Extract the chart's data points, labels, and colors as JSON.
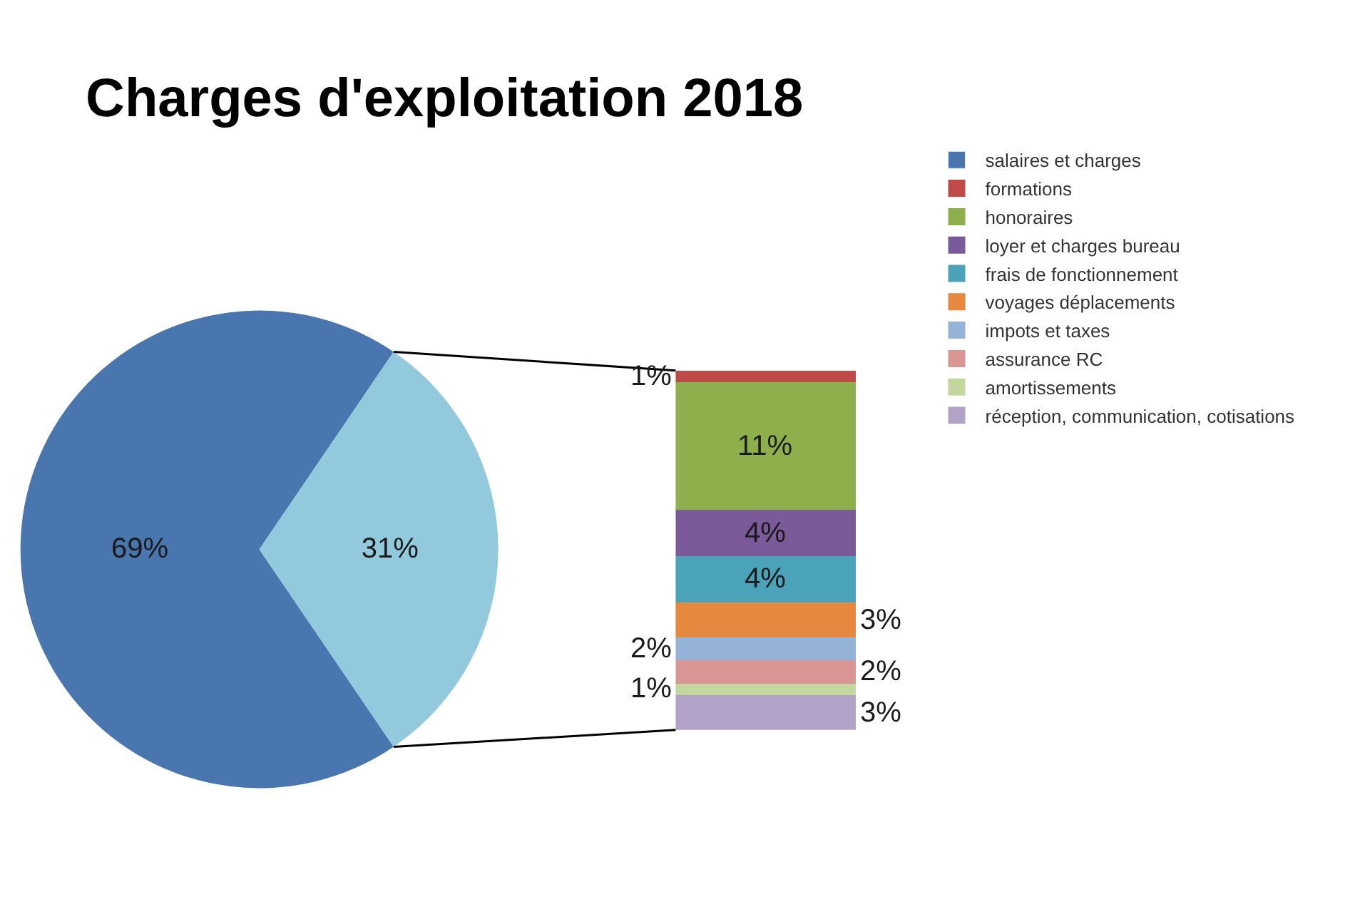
{
  "chart_data": [
    {
      "type": "pie",
      "title": "Charges d'exploitation 2018",
      "categories": [
        "salaires et charges",
        null
      ],
      "values": [
        69,
        31
      ],
      "colors": [
        "#4a76b0",
        "#93c9dc"
      ],
      "value_labels": [
        "69%",
        "31%"
      ],
      "legend": "right"
    },
    {
      "type": "bar",
      "stacked": true,
      "categories": [
        null
      ],
      "legend": "right",
      "series": [
        {
          "name": "réception, communication, cotisations",
          "color": "#b3a2c8",
          "values": [
            3
          ],
          "value_labels": [
            "3%"
          ]
        },
        {
          "name": "amortissements",
          "color": "#c3d69b",
          "values": [
            1
          ],
          "value_labels": [
            "1%"
          ]
        },
        {
          "name": "assurance RC",
          "color": "#d99694",
          "values": [
            2
          ],
          "value_labels": [
            "2%"
          ]
        },
        {
          "name": "impots et taxes",
          "color": "#95b3d7",
          "values": [
            2
          ],
          "value_labels": [
            "2%"
          ]
        },
        {
          "name": "voyages déplacements",
          "color": "#e6883d",
          "values": [
            3
          ],
          "value_labels": [
            "3%"
          ]
        },
        {
          "name": "frais de fonctionnement",
          "color": "#4aa3b8",
          "values": [
            4
          ],
          "value_labels": [
            "4%"
          ]
        },
        {
          "name": "loyer et charges bureau",
          "color": "#7a5a99",
          "values": [
            4
          ],
          "value_labels": [
            "4%"
          ]
        },
        {
          "name": "honoraires",
          "color": "#8eb04c",
          "values": [
            11
          ],
          "value_labels": [
            "11%"
          ]
        },
        {
          "name": "formations",
          "color": "#bf4b48",
          "values": [
            1
          ],
          "value_labels": [
            "1%"
          ]
        }
      ]
    }
  ]
}
